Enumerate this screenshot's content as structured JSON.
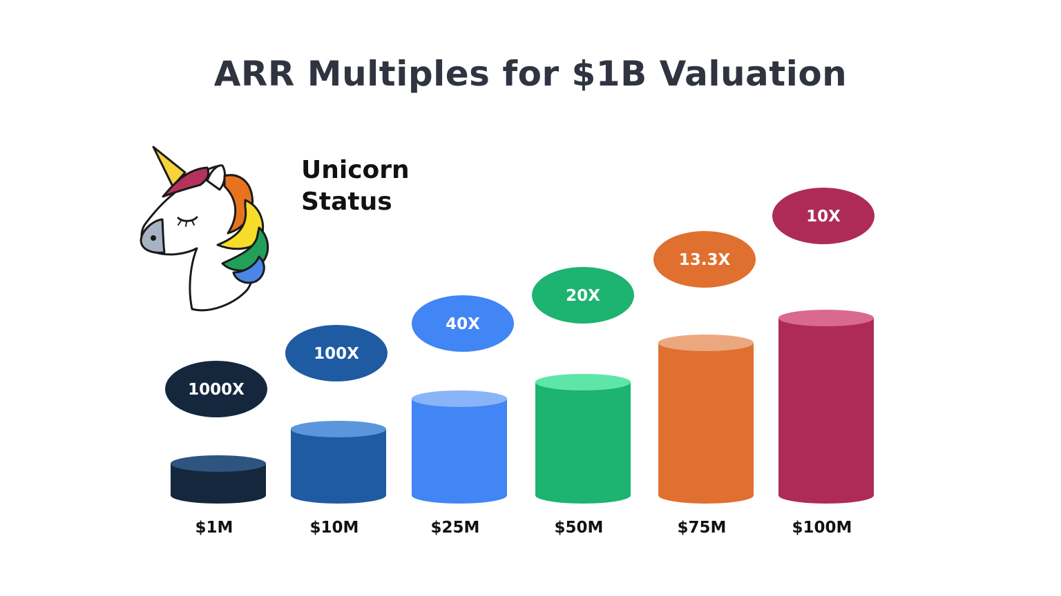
{
  "chart_data": {
    "type": "bar",
    "title": "ARR Multiples for $1B Valuation",
    "annotation": "Unicorn Status",
    "categories": [
      "$1M",
      "$10M",
      "$25M",
      "$50M",
      "$75M",
      "$100M"
    ],
    "values": [
      1,
      10,
      25,
      50,
      75,
      100
    ],
    "value_unit": "ARR ($M)",
    "multiples": [
      "1000X",
      "100X",
      "40X",
      "20X",
      "13.3X",
      "10X"
    ],
    "colors": [
      {
        "side": "#15273d",
        "top": "#2e5580"
      },
      {
        "side": "#1f5ba3",
        "top": "#5b96dc"
      },
      {
        "side": "#4285f4",
        "top": "#8ab4f8"
      },
      {
        "side": "#1db371",
        "top": "#5ee6a8"
      },
      {
        "side": "#e07030",
        "top": "#eba77e"
      },
      {
        "side": "#ae2b58",
        "top": "#d96a8e"
      }
    ],
    "bar_style": "3d-cylinder",
    "grid": false,
    "legend": "none",
    "title_color": "#2f3440"
  },
  "illustration": {
    "icon": "unicorn-head-icon"
  }
}
